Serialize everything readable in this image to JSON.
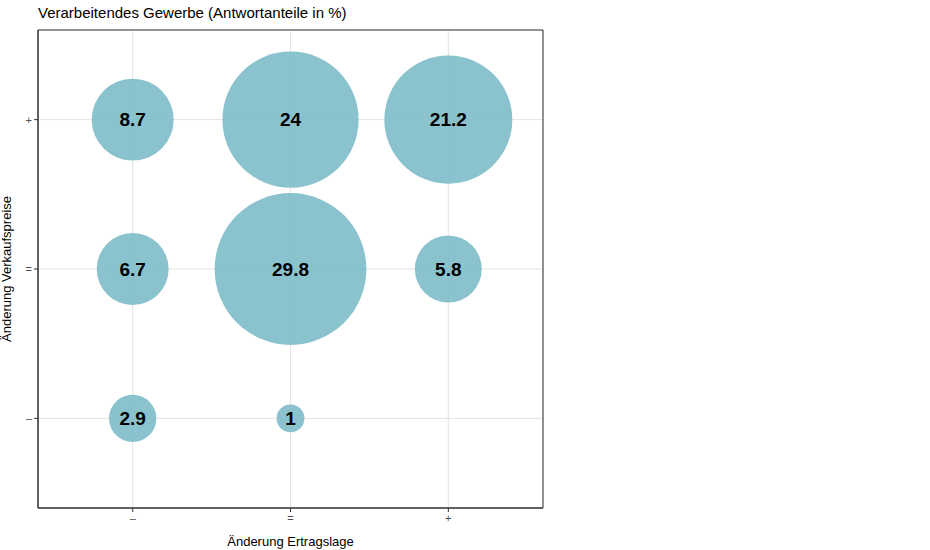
{
  "chart_data": {
    "type": "scatter",
    "title": "Verarbeitendes Gewerbe (Antwortanteile in %)",
    "x_label": "Änderung Ertragslage",
    "y_label": "Änderung Verkaufspreise",
    "categories": [
      "–",
      "=",
      "+"
    ],
    "y_categories": [
      "–",
      "=",
      "+"
    ],
    "points": [
      {
        "x": "–",
        "y": "+",
        "size": 8.7
      },
      {
        "x": "=",
        "y": "+",
        "size": 24
      },
      {
        "x": "+",
        "y": "+",
        "size": 21.2
      },
      {
        "x": "–",
        "y": "=",
        "size": 6.7
      },
      {
        "x": "=",
        "y": "=",
        "size": 29.8
      },
      {
        "x": "+",
        "y": "=",
        "size": 5.8
      },
      {
        "x": "–",
        "y": "–",
        "size": 2.9
      },
      {
        "x": "=",
        "y": "–",
        "size": 1
      }
    ],
    "color": "#7dbdc9",
    "grid": true,
    "data_labels": true
  }
}
